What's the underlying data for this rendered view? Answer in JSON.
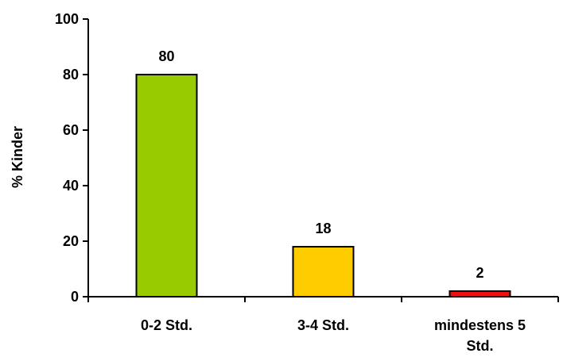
{
  "chart_data": {
    "type": "bar",
    "categories": [
      [
        "0-2 Std."
      ],
      [
        "3-4 Std."
      ],
      [
        "mindestens 5",
        "Std."
      ]
    ],
    "values": [
      80,
      18,
      2
    ],
    "data_labels": [
      "80",
      "18",
      "2"
    ],
    "bar_colors": [
      "#99CC00",
      "#FFCC00",
      "#EE1111"
    ],
    "ylabel": "% Kinder",
    "xlabel": "",
    "title": "",
    "ylim": [
      0,
      100
    ],
    "yticks": [
      0,
      20,
      40,
      60,
      80,
      100
    ],
    "grid": false,
    "legend": "none"
  }
}
